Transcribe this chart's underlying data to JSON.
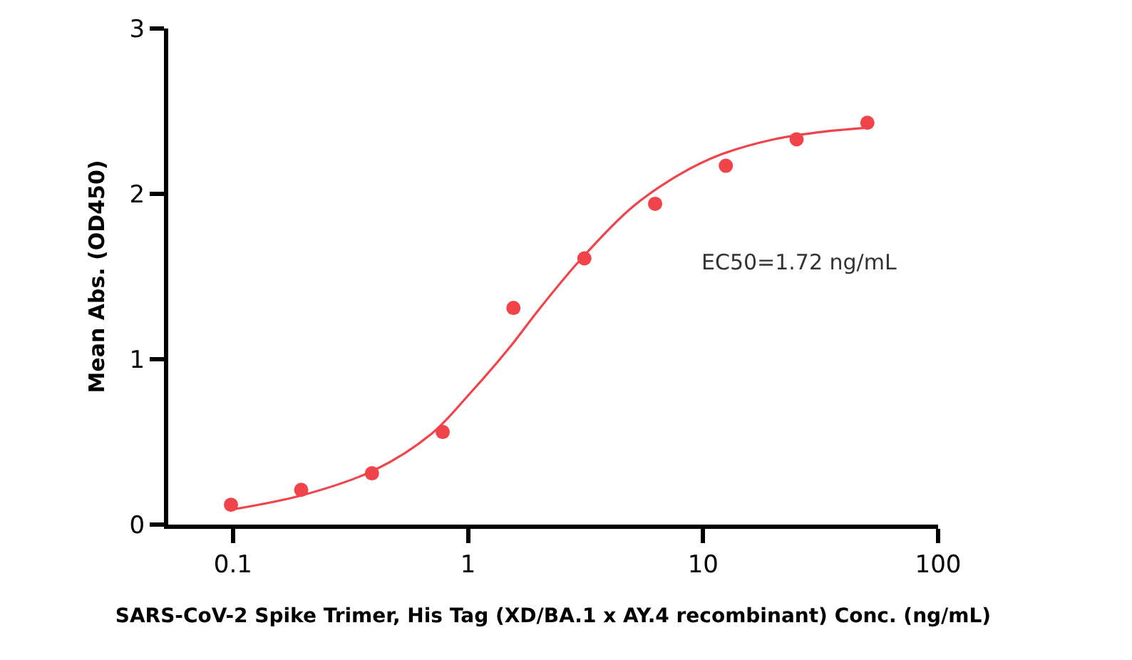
{
  "chart_data": {
    "type": "scatter",
    "xlabel": "SARS-CoV-2 Spike Trimer, His Tag (XD/BA.1 x AY.4 recombinant) Conc. (ng/mL)",
    "ylabel": "Mean Abs. (OD450)",
    "log": "x",
    "xlim": [
      0.053,
      100
    ],
    "xticks": [
      0.1,
      1,
      10,
      100
    ],
    "ylim": [
      0,
      3
    ],
    "yticks": [
      0,
      1,
      2,
      3
    ],
    "annotations": [
      "EC50=1.72 ng/mL"
    ],
    "series": [
      {
        "color": "#f0434a",
        "marker": "circle",
        "x": [
          0.098,
          0.195,
          0.39,
          0.78,
          1.56,
          3.125,
          6.25,
          12.5,
          25,
          50
        ],
        "values": [
          0.12,
          0.21,
          0.31,
          0.56,
          1.31,
          1.61,
          1.94,
          2.17,
          2.33,
          2.43
        ]
      },
      {
        "type": "line",
        "color": "#f0434a",
        "x": [
          0.098,
          0.2,
          0.4,
          0.7,
          1,
          1.5,
          2,
          3,
          5,
          8,
          12,
          20,
          30,
          50
        ],
        "values": [
          0.09,
          0.18,
          0.33,
          0.55,
          0.78,
          1.07,
          1.3,
          1.6,
          1.92,
          2.12,
          2.24,
          2.33,
          2.37,
          2.4
        ]
      }
    ]
  }
}
